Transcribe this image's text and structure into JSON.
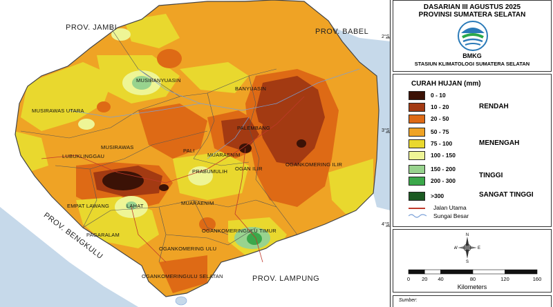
{
  "map": {
    "provinces": {
      "jambi": "PROV. JAMBI",
      "babel": "PROV. BABEL",
      "bengkulu": "PROV. BENGKULU",
      "lampung": "PROV. LAMPUNG"
    },
    "regencies": {
      "musibanyuasin": "MUSIBANYUASIN",
      "banyuasin": "BANYUASIN",
      "musirawas_utara": "MUSIRAWAS UTARA",
      "musirawas": "MUSIRAWAS",
      "lubuklinggau": "LUBUKLINGGAU",
      "palembang": "PALEMBANG",
      "pali": "PALI",
      "muaraenim_city": "MUARAENIM",
      "prabumulih": "PRABUMULIH",
      "ogan_ilir": "OGAN ILIR",
      "ogankomering_ilir": "OGANKOMERING ILIR",
      "empat_lawang": "EMPAT LAWANG",
      "lahat": "LAHAT",
      "muaraenim": "MUARAENIM",
      "pagaralam": "PAGARALAM",
      "oku_timur": "OGANKOMERINGULU TIMUR",
      "oku": "OGANKOMERING ULU",
      "oku_selatan": "OGANKOMERINGULU SELATAN"
    },
    "coords": {
      "c2": "2°S",
      "c3": "3°S",
      "c4": "4°S"
    }
  },
  "panel": {
    "title_line1": "DASARIAN III AGUSTUS 2025",
    "title_line2": "PROVINSI SUMATERA SELATAN",
    "logo_text": "BMKG",
    "station": "STASIUN KLIMATOLOGI SUMATERA SELATAN"
  },
  "legend": {
    "title": "CURAH HUJAN (mm)",
    "classes": [
      {
        "label": "0 - 10",
        "color": "#3b1206"
      },
      {
        "label": "10 - 20",
        "color": "#a33a12"
      },
      {
        "label": "20 - 50",
        "color": "#de6a15"
      },
      {
        "label": "50 - 75",
        "color": "#efa325"
      },
      {
        "label": "75 - 100",
        "color": "#e9d82e"
      },
      {
        "label": "100 - 150",
        "color": "#eef596"
      },
      {
        "label": "150 - 200",
        "color": "#98d38e"
      },
      {
        "label": "200 - 300",
        "color": "#3ba84a"
      },
      {
        "label": ">300",
        "color": "#1b5a22"
      }
    ],
    "categories": {
      "rendah": "RENDAH",
      "menengah": "MENENGAH",
      "tinggi": "TINGGI",
      "sangat_tinggi": "SANGAT TINGGI"
    },
    "lines": {
      "road": "Jalan Utama",
      "road_color": "#c0392b",
      "river": "Sungai Besar",
      "river_color": "#7aa0d8"
    }
  },
  "scale": {
    "compass": {
      "n": "N",
      "s": "S",
      "e": "E",
      "w": "W"
    },
    "ticks": [
      "0",
      "20",
      "40",
      "80",
      "120",
      "160"
    ],
    "unit": "Kilometers"
  },
  "source": {
    "label": "Sumber:"
  }
}
